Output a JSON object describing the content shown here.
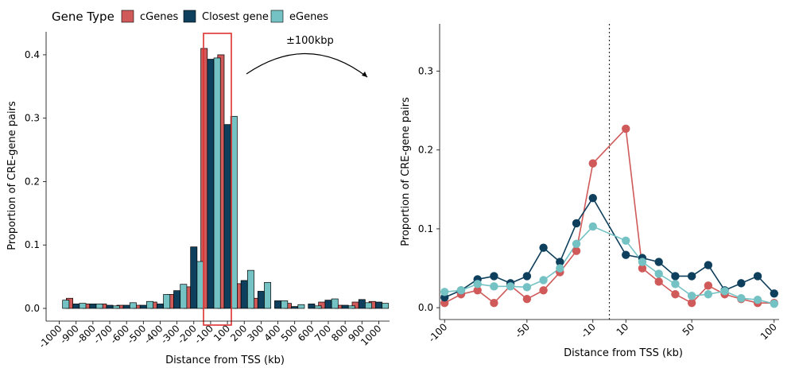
{
  "legend": {
    "title": "Gene Type",
    "items": [
      {
        "name": "cGenes",
        "color": "#d05a5a"
      },
      {
        "name": "Closest gene",
        "color": "#0e3f5c"
      },
      {
        "name": "eGenes",
        "color": "#74c2c4"
      }
    ]
  },
  "chart_data": [
    {
      "type": "bar",
      "title": "",
      "xlabel": "Distance from TSS (kb)",
      "ylabel": "Proportion of CRE-gene pairs",
      "ylim": [
        0,
        0.43
      ],
      "yticks": [
        0.0,
        0.1,
        0.2,
        0.3,
        0.4
      ],
      "ytick_labels": [
        "0.0",
        "0.1",
        "0.2",
        "0.3",
        "0.4"
      ],
      "categories": [
        "-1000",
        "-900",
        "-800",
        "-700",
        "-600",
        "-500",
        "-400",
        "-300",
        "-200",
        "-100",
        "100",
        "200",
        "300",
        "400",
        "500",
        "600",
        "700",
        "800",
        "900",
        "1000"
      ],
      "series": [
        {
          "name": "cGenes",
          "values": [
            0.0,
            0.016,
            0.007,
            0.007,
            0.005,
            0.005,
            0.01,
            0.022,
            0.034,
            0.41,
            0.4,
            0.039,
            0.016,
            0.0,
            0.008,
            0.0,
            0.01,
            0.005,
            0.01,
            0.011
          ]
        },
        {
          "name": "Closest gene",
          "values": [
            0.0,
            0.007,
            0.007,
            0.005,
            0.005,
            0.005,
            0.007,
            0.028,
            0.097,
            0.393,
            0.29,
            0.044,
            0.027,
            0.012,
            0.003,
            0.007,
            0.013,
            0.005,
            0.014,
            0.01
          ]
        },
        {
          "name": "eGenes",
          "values": [
            0.013,
            0.008,
            0.007,
            0.004,
            0.009,
            0.011,
            0.022,
            0.038,
            0.074,
            0.395,
            0.303,
            0.06,
            0.041,
            0.012,
            0.006,
            0.004,
            0.015,
            0.004,
            0.009,
            0.008
          ]
        }
      ],
      "highlight": {
        "from": "-100",
        "to": "100"
      },
      "annotation": "±100kbp"
    },
    {
      "type": "line",
      "title": "",
      "xlabel": "Distance from TSS (kb)",
      "ylabel": "Proportion of CRE-gene pairs",
      "ylim": [
        -0.015,
        0.36
      ],
      "yticks": [
        0.0,
        0.1,
        0.2,
        0.3
      ],
      "ytick_labels": [
        "0.0",
        "0.1",
        "0.2",
        "0.3"
      ],
      "x": [
        -100,
        -90,
        -80,
        -70,
        -60,
        -50,
        -40,
        -30,
        -20,
        -10,
        10,
        20,
        30,
        40,
        50,
        60,
        70,
        80,
        90,
        100
      ],
      "xlim": [
        -103,
        103
      ],
      "xticks": [
        -100,
        -50,
        -10,
        10,
        50,
        100
      ],
      "xtick_labels": [
        "-100",
        "-50",
        "-10",
        "10",
        "50",
        "100"
      ],
      "vline": 0,
      "series": [
        {
          "name": "cGenes",
          "values": [
            0.006,
            0.017,
            0.022,
            0.006,
            0.028,
            0.011,
            0.022,
            0.045,
            0.072,
            0.183,
            0.227,
            0.05,
            0.033,
            0.017,
            0.006,
            0.028,
            0.017,
            0.011,
            0.006,
            0.006
          ]
        },
        {
          "name": "Closest gene",
          "values": [
            0.013,
            0.022,
            0.036,
            0.04,
            0.031,
            0.04,
            0.076,
            0.058,
            0.107,
            0.139,
            0.067,
            0.063,
            0.058,
            0.04,
            0.04,
            0.054,
            0.022,
            0.031,
            0.04,
            0.018
          ]
        },
        {
          "name": "eGenes",
          "values": [
            0.02,
            0.022,
            0.03,
            0.027,
            0.027,
            0.026,
            0.035,
            0.05,
            0.081,
            0.103,
            0.085,
            0.058,
            0.043,
            0.03,
            0.015,
            0.017,
            0.021,
            0.012,
            0.01,
            0.005
          ]
        }
      ]
    }
  ]
}
